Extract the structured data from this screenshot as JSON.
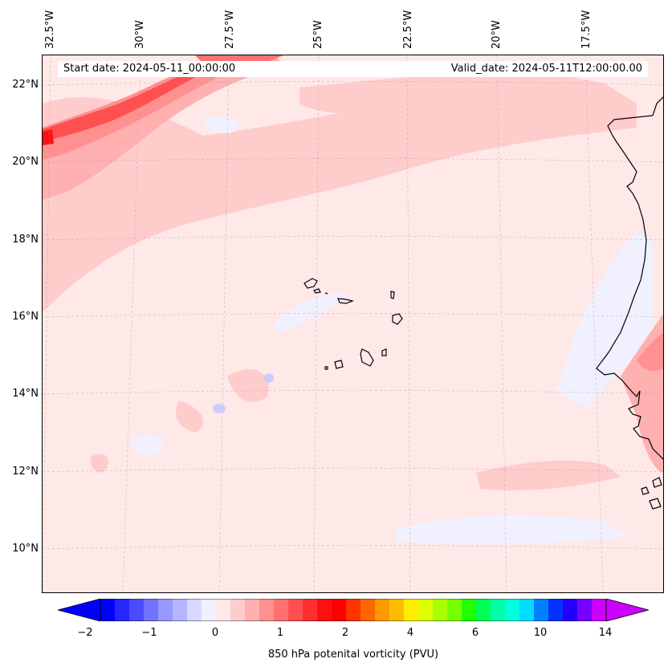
{
  "map": {
    "title_left": "Start date: 2024-05-11_00:00:00",
    "title_right": "Valid_date: 2024-05-11T12:00:00.00",
    "lon_labels": [
      "32.5°W",
      "30°W",
      "27.5°W",
      "25°W",
      "22.5°W",
      "20°W",
      "17.5°W"
    ],
    "lat_labels": [
      "22°N",
      "20°N",
      "18°N",
      "16°N",
      "14°N",
      "12°N",
      "10°N"
    ],
    "field": "850 hPa potential vorticity",
    "region": "Eastern tropical Atlantic, Cape Verde Islands and West African coast"
  },
  "colorbar": {
    "label": "850 hPa potenital vorticity (PVU)",
    "tick_labels": [
      "−2",
      "−1",
      "0",
      "1",
      "2",
      "4",
      "6",
      "10",
      "14"
    ],
    "colors": [
      "#0000ff",
      "#2626ff",
      "#4c4cff",
      "#7272ff",
      "#9898ff",
      "#b4b4ff",
      "#d8d8ff",
      "#f0f0ff",
      "#ffe8e8",
      "#ffcccc",
      "#ffb0b0",
      "#ff9090",
      "#ff7070",
      "#ff5050",
      "#ff3030",
      "#ff1010",
      "#ff0000",
      "#ff3300",
      "#ff6600",
      "#ff9900",
      "#ffbb00",
      "#ffee00",
      "#ddff00",
      "#aaff00",
      "#77ff00",
      "#22ff00",
      "#00ff55",
      "#00ffaa",
      "#00ffdd",
      "#00ddff",
      "#0080ff",
      "#0033ff",
      "#2200ff",
      "#7700ff",
      "#cc00ff"
    ],
    "under_color": "#0000ff",
    "over_color": "#cc00ff"
  }
}
